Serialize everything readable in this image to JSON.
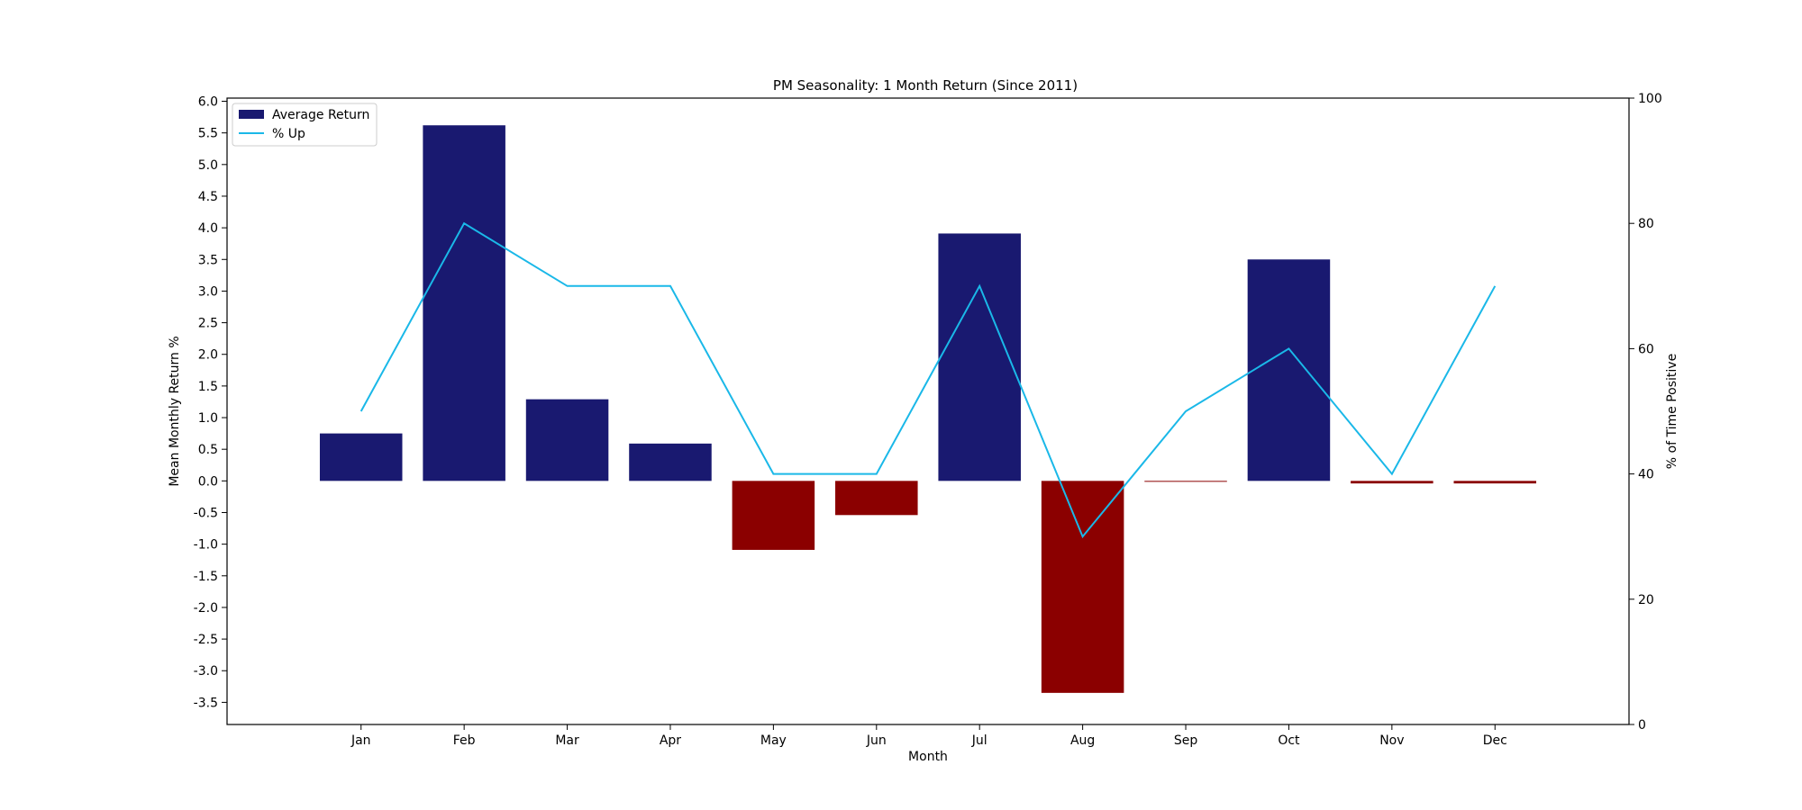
{
  "chart_data": {
    "type": "bar",
    "title": "PM Seasonality: 1 Month Return (Since 2011)",
    "xlabel": "Month",
    "ylabel": "Mean Monthly Return %",
    "y2label": "% of Time Positive",
    "categories": [
      "Jan",
      "Feb",
      "Mar",
      "Apr",
      "May",
      "Jun",
      "Jul",
      "Aug",
      "Sep",
      "Oct",
      "Nov",
      "Dec"
    ],
    "series": [
      {
        "name": "Average Return",
        "type": "bar",
        "axis": "left",
        "values": [
          0.75,
          5.62,
          1.29,
          0.59,
          -1.09,
          -0.54,
          3.91,
          -3.35,
          -0.01,
          3.5,
          -0.04,
          -0.04
        ]
      },
      {
        "name": "% Up",
        "type": "line",
        "axis": "right",
        "values": [
          50,
          80,
          70,
          70,
          40,
          40,
          70,
          30,
          50,
          60,
          40,
          70
        ]
      }
    ],
    "ylim": [
      -3.85,
      6.05
    ],
    "y2lim": [
      0,
      100
    ],
    "yticks": [
      "6.0",
      "5.5",
      "5.0",
      "4.5",
      "4.0",
      "3.5",
      "3.0",
      "2.5",
      "2.0",
      "1.5",
      "1.0",
      "0.5",
      "0.0",
      "-0.5",
      "-1.0",
      "-1.5",
      "-2.0",
      "-2.5",
      "-3.0",
      "-3.5"
    ],
    "y2ticks": [
      "0",
      "20",
      "40",
      "60",
      "80",
      "100"
    ],
    "grid": false,
    "legend_position": "top-left",
    "colors": {
      "positive_bar": "#191970",
      "negative_bar": "#8b0000",
      "line": "#1ab8e8",
      "axes": "#000000"
    }
  }
}
